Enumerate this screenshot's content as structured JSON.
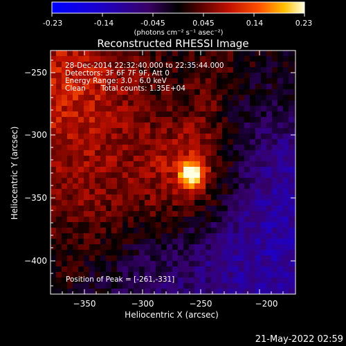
{
  "colorbar": {
    "tick_labels": [
      "-0.23",
      "-0.14",
      "-0.045",
      "0.045",
      "0.14",
      "0.23"
    ],
    "unit_label": "(photons cm⁻² s⁻¹ asec⁻²)",
    "range": [
      -0.23,
      0.23
    ]
  },
  "title": "Reconstructed RHESSI Image",
  "annotations": {
    "time_range": "28-Dec-2014 22:32:40.000 to 22:35:44.000",
    "detectors": "Detectors: 3F 6F 7F 9F, Att 0",
    "energy_range": "Energy Range: 3.0 - 6.0 keV",
    "clean_label": "Clean",
    "total_counts": "Total counts: 1.35E+04",
    "peak_position": "Position of Peak = [-261,-331]"
  },
  "axes": {
    "xlabel": "Heliocentric X (arcsec)",
    "ylabel": "Heliocentric Y (arcsec)",
    "x_ticks": [
      "−350",
      "−300",
      "−250",
      "−200"
    ],
    "y_ticks": [
      "−250",
      "−300",
      "−350",
      "−400"
    ],
    "xlim": [
      -372,
      -180
    ],
    "ylim": [
      -425,
      -232
    ]
  },
  "image": {
    "peak": [
      -261,
      -331
    ],
    "colormap": "rhessi-blue-purple-red-yellow-white"
  },
  "timestamp": "21-May-2022 02:59"
}
